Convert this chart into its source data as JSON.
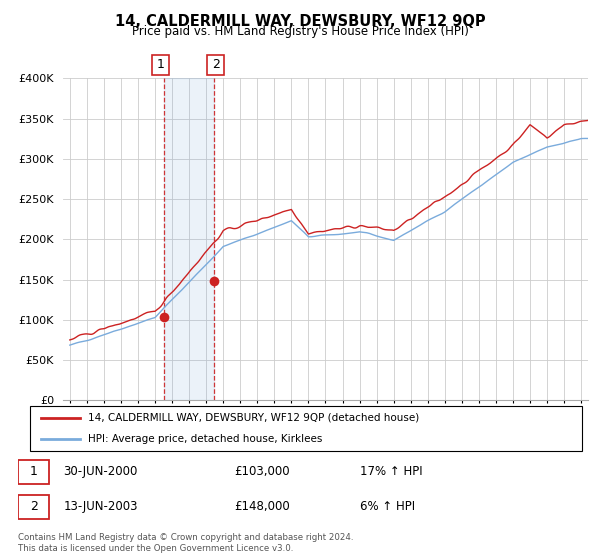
{
  "title": "14, CALDERMILL WAY, DEWSBURY, WF12 9QP",
  "subtitle": "Price paid vs. HM Land Registry's House Price Index (HPI)",
  "legend_line1": "14, CALDERMILL WAY, DEWSBURY, WF12 9QP (detached house)",
  "legend_line2": "HPI: Average price, detached house, Kirklees",
  "sale1_date": "30-JUN-2000",
  "sale1_price": "£103,000",
  "sale1_hpi": "17% ↑ HPI",
  "sale2_date": "13-JUN-2003",
  "sale2_price": "£148,000",
  "sale2_hpi": "6% ↑ HPI",
  "footer": "Contains HM Land Registry data © Crown copyright and database right 2024.\nThis data is licensed under the Open Government Licence v3.0.",
  "hpi_color": "#7aabdc",
  "price_color": "#cc2222",
  "vline_color": "#cc2222",
  "background_fill": "#ddeeff",
  "ylim": [
    0,
    400000
  ],
  "ylabel_ticks": [
    0,
    50000,
    100000,
    150000,
    200000,
    250000,
    300000,
    350000,
    400000
  ],
  "sale1_year": 2000.5,
  "sale2_year": 2003.45,
  "sale1_marker_y": 103000,
  "sale2_marker_y": 148000,
  "xmin": 1994.6,
  "xmax": 2025.4
}
